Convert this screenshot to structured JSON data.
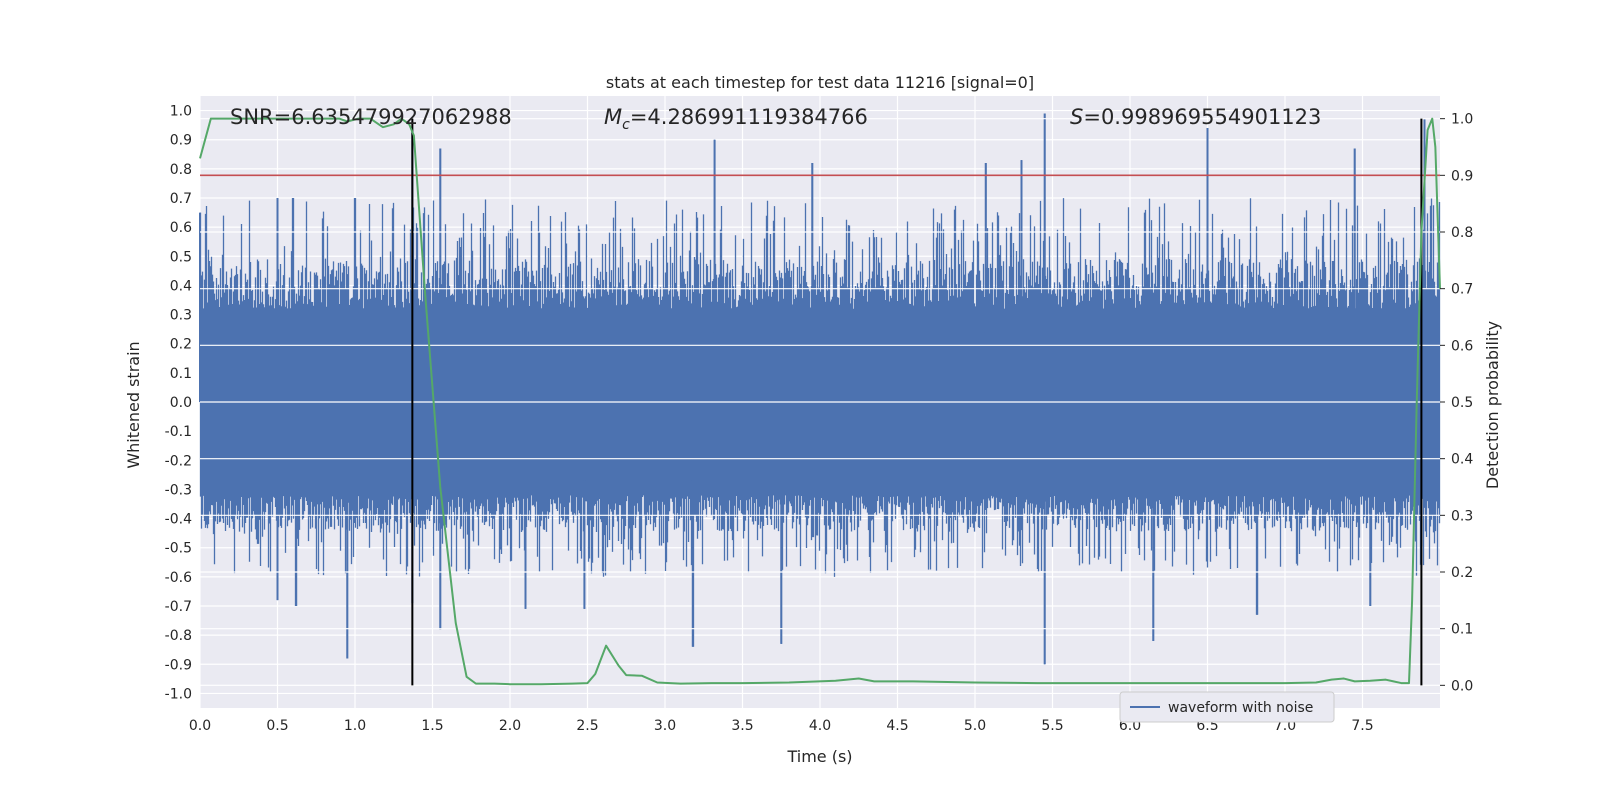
{
  "chart_data": {
    "type": "line",
    "title": "stats at each timestep for test data 11216 [signal=0]",
    "xlabel": "Time (s)",
    "ylabel": "Whitened strain",
    "y2label": "Detection probability",
    "xlim": [
      0,
      8
    ],
    "ylim": [
      -1.05,
      1.05
    ],
    "y2lim": [
      -0.04,
      1.04
    ],
    "xticks": [
      "0.0",
      "0.5",
      "1.0",
      "1.5",
      "2.0",
      "2.5",
      "3.0",
      "3.5",
      "4.0",
      "4.5",
      "5.0",
      "5.5",
      "6.0",
      "6.5",
      "7.0",
      "7.5"
    ],
    "yticks": [
      "-1.0",
      "-0.9",
      "-0.8",
      "-0.7",
      "-0.6",
      "-0.5",
      "-0.4",
      "-0.3",
      "-0.2",
      "-0.1",
      "0.0",
      "0.1",
      "0.2",
      "0.3",
      "0.4",
      "0.5",
      "0.6",
      "0.7",
      "0.8",
      "0.9",
      "1.0"
    ],
    "y2ticks": [
      "0.0",
      "0.1",
      "0.2",
      "0.3",
      "0.4",
      "0.5",
      "0.6",
      "0.7",
      "0.8",
      "0.9",
      "1.0"
    ],
    "grid": true,
    "legend": {
      "entries": [
        "waveform with noise"
      ],
      "placement": "lower-right"
    },
    "annotations": {
      "snr": "SNR=6.635479927062988",
      "mc_symbol": "M",
      "mc_sub": "c",
      "mc_value": "=4.286991119384766",
      "s_symbol": "S",
      "s_value": "=0.998969554901123"
    },
    "threshold": {
      "axis": "right",
      "value": 0.9,
      "color": "#c44e52"
    },
    "vlines": [
      1.37,
      7.88
    ],
    "strain": {
      "name": "waveform with noise",
      "color": "#4c72b0",
      "typical_band": [
        -0.32,
        0.32
      ],
      "extreme_band": [
        -0.6,
        0.7
      ],
      "peaks": [
        {
          "t": 0.0,
          "v": 0.65
        },
        {
          "t": 0.5,
          "v": 0.7
        },
        {
          "t": 0.6,
          "v": 0.7
        },
        {
          "t": 1.0,
          "v": 0.7
        },
        {
          "t": 1.37,
          "v": 0.93
        },
        {
          "t": 1.55,
          "v": 0.87
        },
        {
          "t": 3.32,
          "v": 0.9
        },
        {
          "t": 3.95,
          "v": 0.82
        },
        {
          "t": 5.07,
          "v": 0.82
        },
        {
          "t": 5.3,
          "v": 0.83
        },
        {
          "t": 5.45,
          "v": 0.99
        },
        {
          "t": 6.5,
          "v": 0.94
        },
        {
          "t": 7.45,
          "v": 0.87
        },
        {
          "t": 7.9,
          "v": 0.97
        }
      ],
      "troughs": [
        {
          "t": 0.5,
          "v": -0.68
        },
        {
          "t": 0.62,
          "v": -0.7
        },
        {
          "t": 0.95,
          "v": -0.88
        },
        {
          "t": 1.37,
          "v": -0.69
        },
        {
          "t": 1.55,
          "v": -0.78
        },
        {
          "t": 2.1,
          "v": -0.71
        },
        {
          "t": 2.48,
          "v": -0.71
        },
        {
          "t": 3.18,
          "v": -0.84
        },
        {
          "t": 3.75,
          "v": -0.83
        },
        {
          "t": 5.45,
          "v": -0.9
        },
        {
          "t": 6.15,
          "v": -0.82
        },
        {
          "t": 6.82,
          "v": -0.73
        },
        {
          "t": 7.55,
          "v": -0.7
        }
      ]
    },
    "probability": {
      "color": "#55a868",
      "x": [
        0.0,
        0.07,
        0.3,
        0.6,
        0.9,
        0.95,
        1.02,
        1.1,
        1.18,
        1.25,
        1.3,
        1.35,
        1.38,
        1.45,
        1.55,
        1.65,
        1.72,
        1.78,
        1.9,
        2.0,
        2.2,
        2.4,
        2.5,
        2.55,
        2.62,
        2.7,
        2.75,
        2.85,
        2.95,
        3.1,
        3.3,
        3.5,
        3.8,
        4.1,
        4.25,
        4.35,
        4.6,
        5.0,
        5.4,
        5.8,
        6.2,
        6.6,
        7.0,
        7.2,
        7.3,
        7.38,
        7.45,
        7.55,
        7.65,
        7.7,
        7.75,
        7.8,
        7.82,
        7.85,
        7.88,
        7.92,
        7.95,
        7.97,
        8.0
      ],
      "y": [
        0.93,
        1.0,
        1.0,
        1.0,
        1.0,
        0.995,
        1.0,
        1.0,
        0.985,
        0.99,
        1.0,
        0.99,
        0.97,
        0.7,
        0.35,
        0.11,
        0.015,
        0.003,
        0.003,
        0.002,
        0.002,
        0.003,
        0.004,
        0.02,
        0.07,
        0.035,
        0.018,
        0.017,
        0.005,
        0.003,
        0.004,
        0.004,
        0.005,
        0.008,
        0.012,
        0.007,
        0.007,
        0.005,
        0.004,
        0.004,
        0.004,
        0.004,
        0.004,
        0.005,
        0.01,
        0.012,
        0.007,
        0.008,
        0.01,
        0.007,
        0.004,
        0.004,
        0.15,
        0.5,
        0.8,
        0.98,
        1.0,
        0.95,
        0.7
      ]
    }
  }
}
